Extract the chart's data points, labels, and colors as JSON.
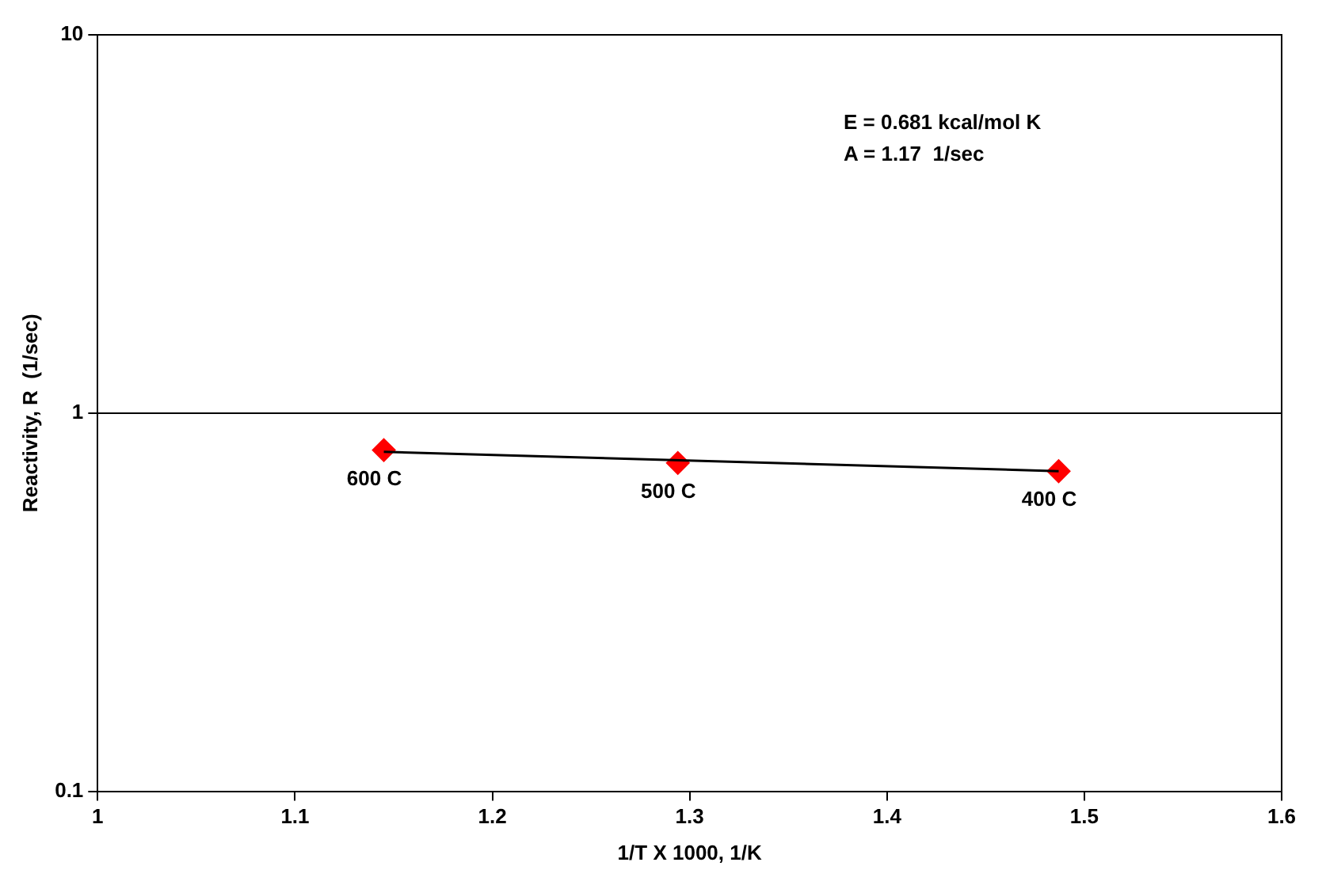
{
  "chart_data": {
    "type": "scatter",
    "xlabel": "1/T X 1000, 1/K",
    "ylabel": "Reactivity, R  (1/sec)",
    "x": [
      1.145,
      1.294,
      1.487
    ],
    "series": [
      {
        "color": "#ff0000",
        "values": [
          0.798,
          0.738,
          0.702
        ],
        "marker": "diamond"
      },
      {
        "type": "line",
        "color": "#000000",
        "x": [
          1.145,
          1.487
        ],
        "values": [
          0.79,
          0.702
        ],
        "marker": "none",
        "line_style": "solid"
      }
    ],
    "log": "y",
    "xlim": [
      1,
      1.6
    ],
    "xticks": [
      1,
      1.1,
      1.2,
      1.3,
      1.4,
      1.5,
      1.6
    ],
    "ylim": [
      0.1,
      10
    ],
    "yticks": [
      0.1,
      1,
      10
    ],
    "grid": "y",
    "legend": false,
    "annotations": [
      "E = 0.681 kcal/mol K",
      "A = 1.17  1/sec",
      {
        "text": "600 C",
        "x": 1.145,
        "y": 0.798
      },
      {
        "text": "500 C",
        "x": 1.294,
        "y": 0.738
      },
      {
        "text": "400 C",
        "x": 1.487,
        "y": 0.702
      }
    ]
  }
}
